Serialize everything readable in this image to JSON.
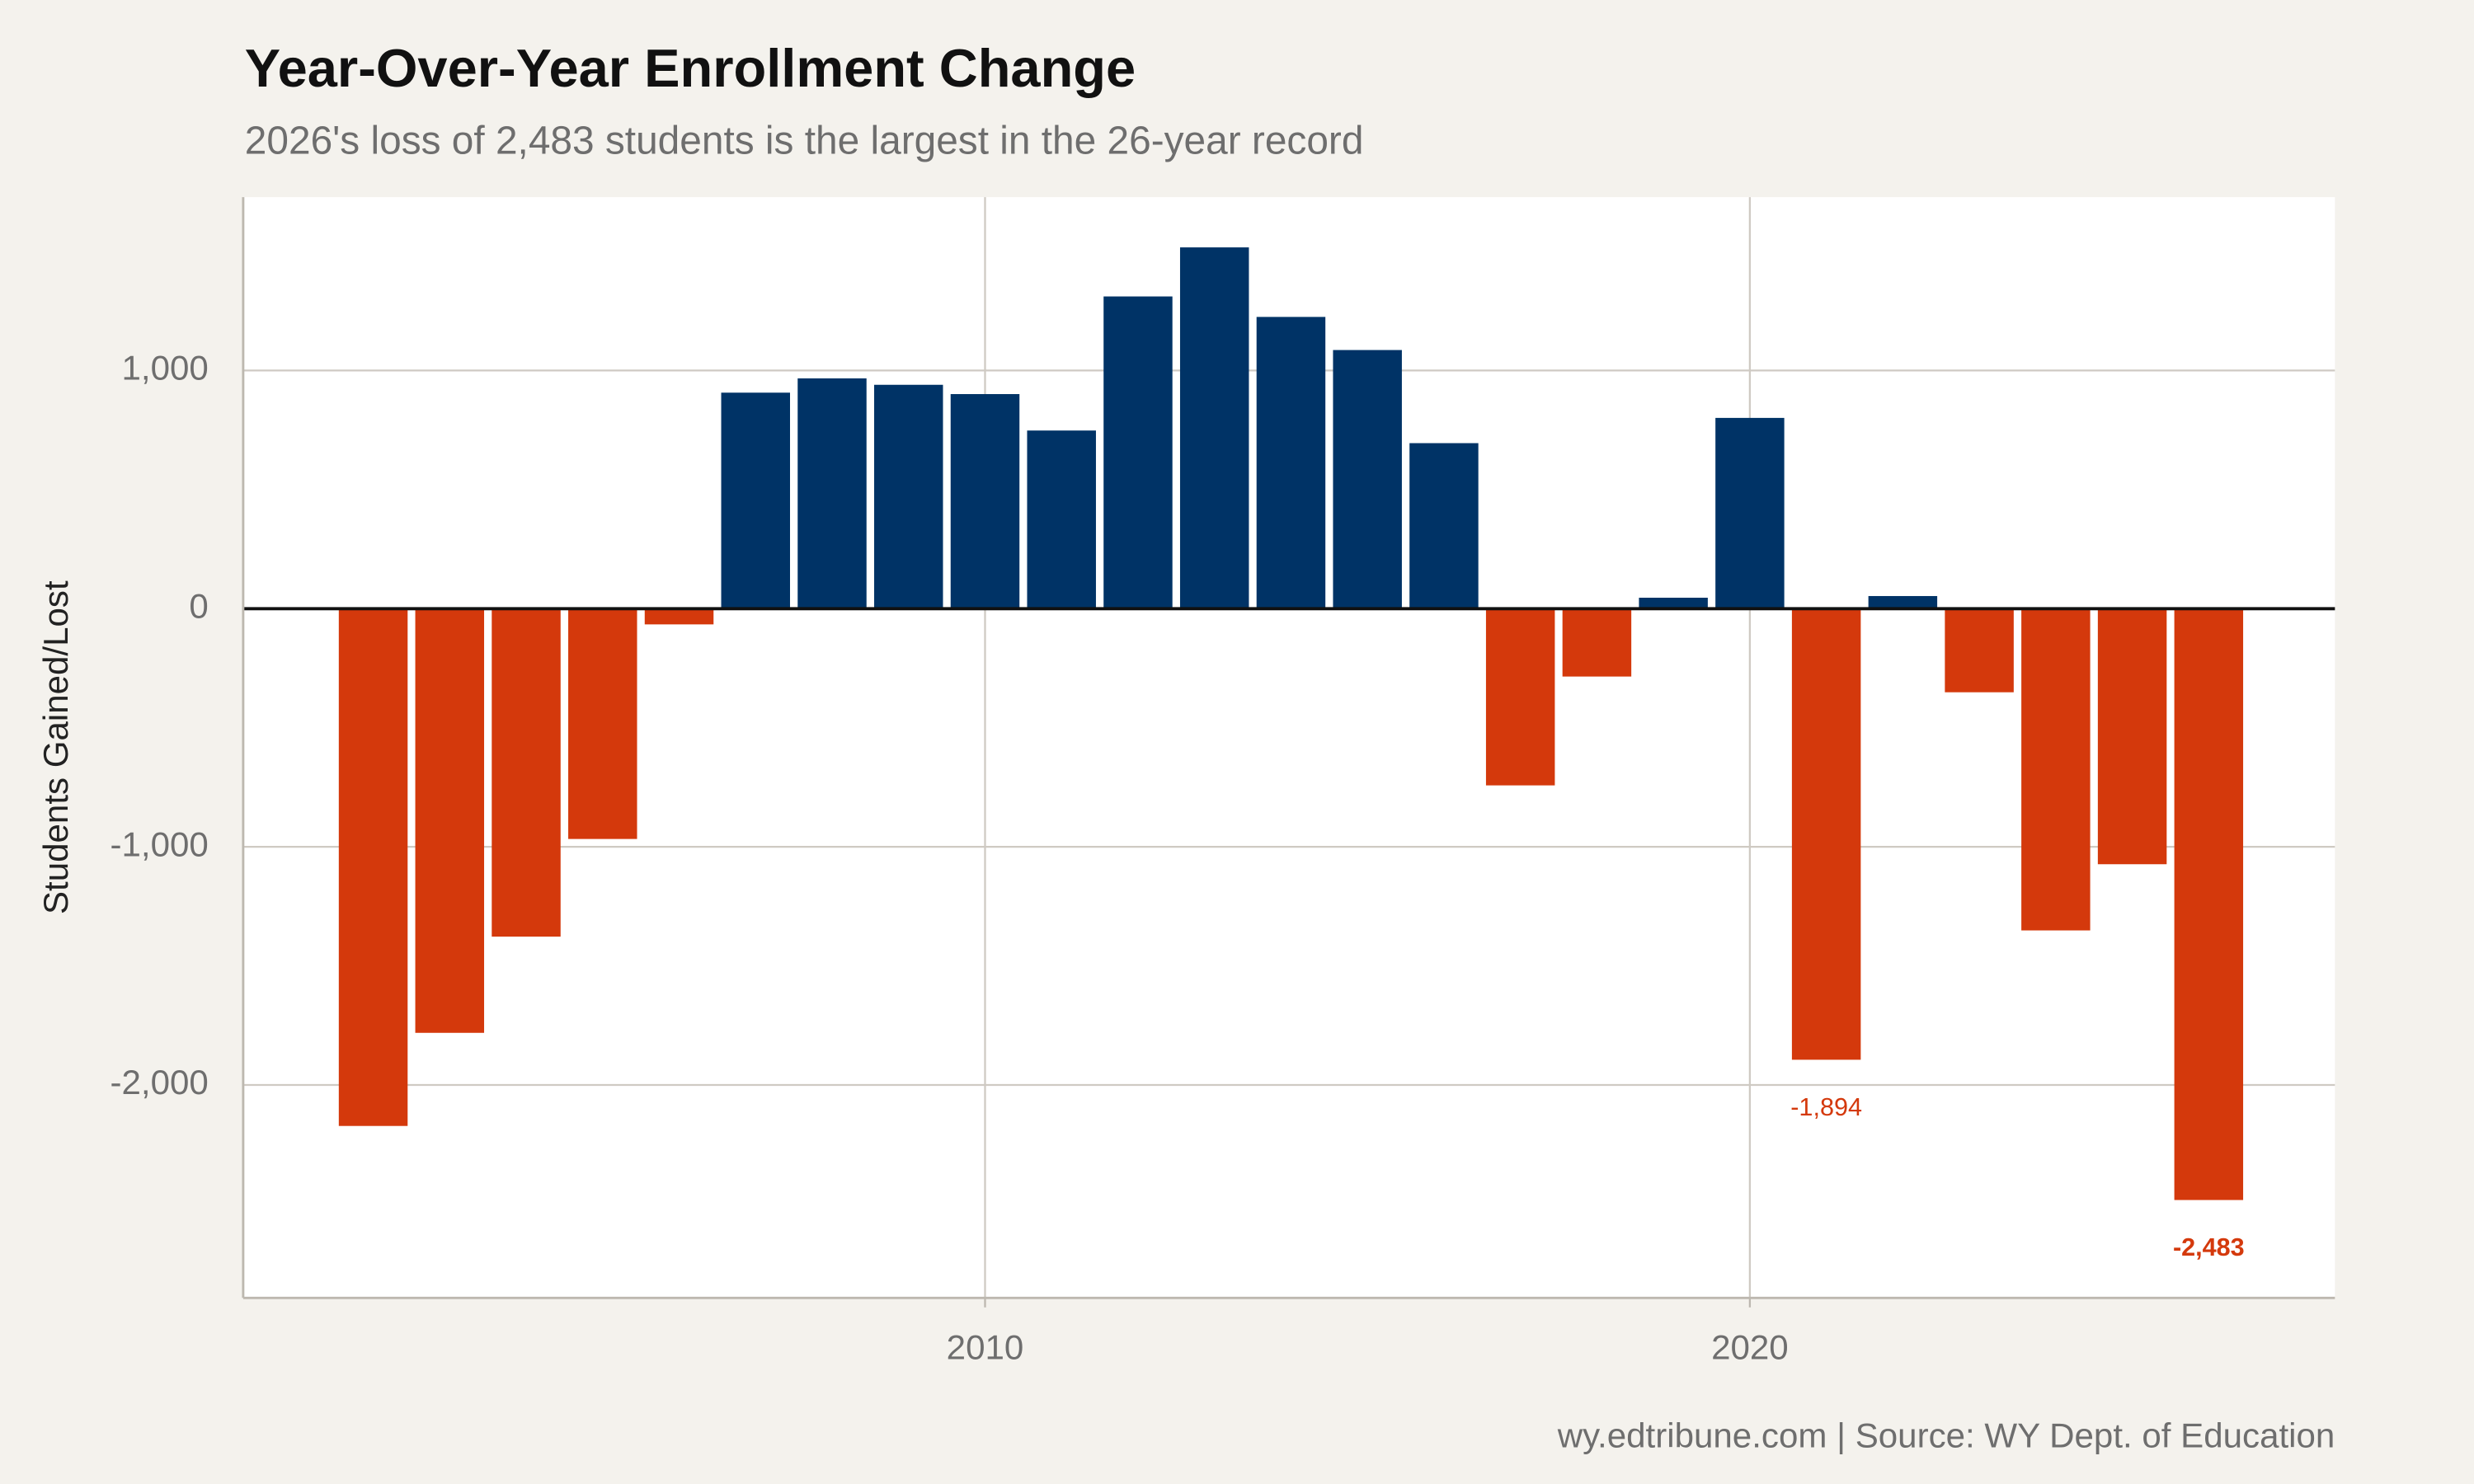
{
  "chart_data": {
    "type": "bar",
    "title": "Year-Over-Year Enrollment Change",
    "subtitle": "2026's loss of 2,483 students is the largest in the 26-year record",
    "y_label": "Students Gained/Lost",
    "source": "wy.edtribune.com | Source: WY Dept. of Education",
    "x": [
      2002,
      2003,
      2004,
      2005,
      2006,
      2007,
      2008,
      2009,
      2010,
      2011,
      2012,
      2013,
      2014,
      2015,
      2016,
      2017,
      2018,
      2019,
      2020,
      2021,
      2022,
      2023,
      2024,
      2025,
      2026
    ],
    "values": [
      -2172,
      -1781,
      -1377,
      -967,
      -66,
      907,
      967,
      940,
      901,
      748,
      1311,
      1517,
      1225,
      1086,
      695,
      -742,
      -285,
      46,
      801,
      -1894,
      53,
      -351,
      -1351,
      -1073,
      -2483
    ],
    "value_labels": [
      null,
      null,
      null,
      null,
      null,
      null,
      null,
      null,
      null,
      null,
      null,
      null,
      null,
      null,
      null,
      null,
      null,
      null,
      null,
      "-1,894",
      null,
      null,
      null,
      null,
      "-2,483"
    ],
    "color_positive": "#003366",
    "color_negative": "#d4390c",
    "xlim": [
      2000.3,
      2027.65
    ],
    "xticks": [
      2010,
      2020
    ],
    "ylim": [
      -2894,
      1728
    ],
    "yticks": [
      {
        "value": -2000,
        "label": "-2,000"
      },
      {
        "value": -1000,
        "label": "-1,000"
      },
      0,
      {
        "value": 1000,
        "label": "1,000"
      }
    ],
    "grid": true
  }
}
